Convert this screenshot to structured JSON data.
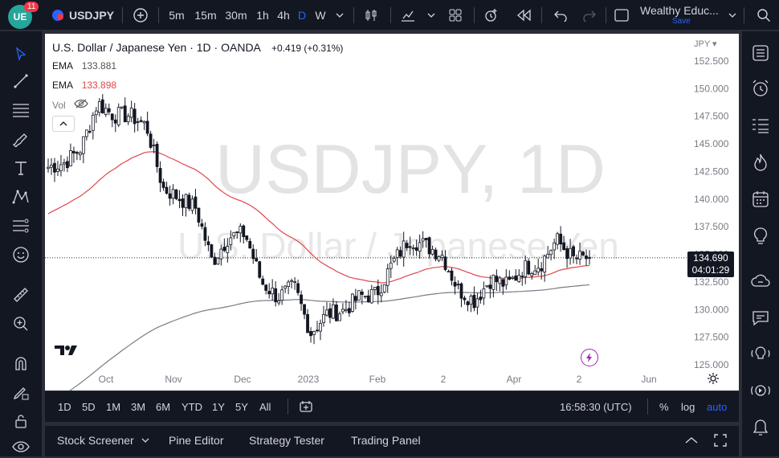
{
  "topbar": {
    "notification_count": "11",
    "symbol": "USDJPY",
    "intervals": [
      "5m",
      "15m",
      "30m",
      "1h",
      "4h",
      "D",
      "W"
    ],
    "active_interval": "D",
    "layout_name": "Wealthy Educ...",
    "save_label": "Save"
  },
  "chart_header": {
    "title": "U.S. Dollar / Japanese Yen · 1D · OANDA",
    "change": "+0.419 (+0.31%)",
    "ema1_label": "EMA",
    "ema1_value": "133.881",
    "ema2_label": "EMA",
    "ema2_value": "133.898",
    "vol_label": "Vol",
    "currency": "JPY"
  },
  "watermark": {
    "line1": "USDJPY, 1D",
    "line2": "U.S. Dollar / Japanese Yen"
  },
  "price_label": {
    "price": "134.690",
    "countdown": "04:01:29"
  },
  "timebar": {
    "ranges": [
      "1D",
      "5D",
      "1M",
      "3M",
      "6M",
      "YTD",
      "1Y",
      "5Y",
      "All"
    ],
    "clock": "16:58:30 (UTC)",
    "percent": "%",
    "log": "log",
    "auto": "auto"
  },
  "panelbar": {
    "tabs": [
      "Stock Screener",
      "Pine Editor",
      "Strategy Tester",
      "Trading Panel"
    ]
  },
  "colors": {
    "up": "#131722",
    "down": "#131722",
    "ema_fast": "#e0464b",
    "ema_slow": "#787b86",
    "accent": "#2962ff",
    "price_tag": "#131722"
  },
  "chart_data": {
    "type": "candlestick",
    "title": "U.S. Dollar / Japanese Yen · 1D · OANDA",
    "yaxis_ticks": [
      "152.500",
      "150.000",
      "147.500",
      "145.000",
      "142.500",
      "140.000",
      "137.500",
      "135.000",
      "132.500",
      "130.000",
      "127.500",
      "125.000"
    ],
    "ylim": [
      124.5,
      153.5
    ],
    "xaxis_ticks": [
      "Oct",
      "Nov",
      "Dec",
      "2023",
      "Feb",
      "2",
      "Apr",
      "2",
      "Jun"
    ],
    "last_price": 134.69,
    "daily_closes_keypoints": [
      {
        "date": "Sep 12",
        "close": 142.9
      },
      {
        "date": "Sep 22",
        "close": 143.3
      },
      {
        "date": "Oct 3",
        "close": 144.6
      },
      {
        "date": "Oct 14",
        "close": 148.7
      },
      {
        "date": "Oct 21",
        "close": 147.6
      },
      {
        "date": "Oct 28",
        "close": 147.6
      },
      {
        "date": "Nov 4",
        "close": 146.6
      },
      {
        "date": "Nov 10",
        "close": 141.0
      },
      {
        "date": "Nov 18",
        "close": 140.1
      },
      {
        "date": "Nov 25",
        "close": 139.2
      },
      {
        "date": "Dec 2",
        "close": 134.3
      },
      {
        "date": "Dec 9",
        "close": 136.6
      },
      {
        "date": "Dec 16",
        "close": 136.9
      },
      {
        "date": "Dec 20",
        "close": 132.5
      },
      {
        "date": "Dec 30",
        "close": 131.1
      },
      {
        "date": "Jan 6",
        "close": 132.1
      },
      {
        "date": "Jan 13",
        "close": 127.9
      },
      {
        "date": "Jan 20",
        "close": 129.6
      },
      {
        "date": "Jan 27",
        "close": 129.9
      },
      {
        "date": "Feb 3",
        "close": 131.2
      },
      {
        "date": "Feb 10",
        "close": 131.4
      },
      {
        "date": "Feb 17",
        "close": 134.2
      },
      {
        "date": "Feb 24",
        "close": 136.4
      },
      {
        "date": "Mar 3",
        "close": 135.8
      },
      {
        "date": "Mar 10",
        "close": 135.0
      },
      {
        "date": "Mar 17",
        "close": 131.8
      },
      {
        "date": "Mar 24",
        "close": 130.8
      },
      {
        "date": "Mar 31",
        "close": 132.8
      },
      {
        "date": "Apr 7",
        "close": 132.2
      },
      {
        "date": "Apr 14",
        "close": 133.8
      },
      {
        "date": "Apr 21",
        "close": 134.1
      },
      {
        "date": "Apr 28",
        "close": 136.3
      },
      {
        "date": "May 3",
        "close": 134.6
      },
      {
        "date": "May 8",
        "close": 134.69
      }
    ],
    "series": [
      {
        "name": "EMA",
        "last": 133.881
      },
      {
        "name": "EMA",
        "last": 133.898
      }
    ]
  }
}
